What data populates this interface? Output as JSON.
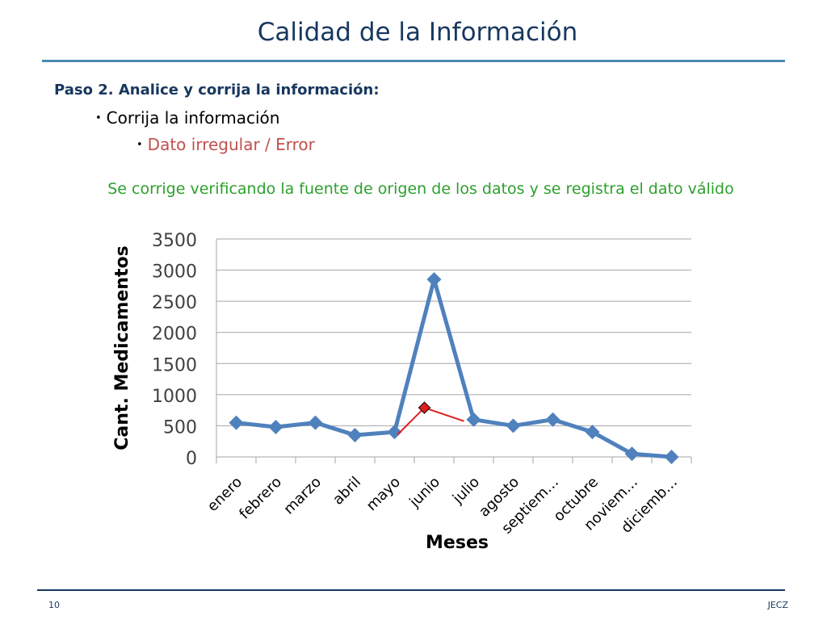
{
  "slide": {
    "title": "Calidad de la Información",
    "heading": "Paso 2. Analice y corrija la información:",
    "bullet_1": "Corrija la información",
    "bullet_2": "Dato irregular / Error",
    "note": "Se corrige verificando la fuente de origen de los datos y se registra el dato válido",
    "footer_page": "10",
    "footer_author": "JECZ"
  },
  "colors": {
    "title": "#17375e",
    "note": "#2ca02c",
    "error_text": "#c0504d",
    "series": "#4f81bd",
    "correction_line": "#e02020",
    "correction_marker": "#e02020"
  },
  "chart_data": {
    "type": "line",
    "xlabel": "Meses",
    "ylabel": "Cant. Medicamentos",
    "ylim": [
      0,
      3500
    ],
    "yticks": [
      0,
      500,
      1000,
      1500,
      2000,
      2500,
      3000,
      3500
    ],
    "grid": true,
    "categories": [
      "enero",
      "febrero",
      "marzo",
      "abril",
      "mayo",
      "junio",
      "julio",
      "agosto",
      "septiem…",
      "octubre",
      "noviem…",
      "diciemb…"
    ],
    "series": [
      {
        "values": [
          550,
          480,
          550,
          350,
          400,
          2850,
          600,
          500,
          600,
          400,
          50,
          0
        ]
      }
    ],
    "correction": {
      "category": "junio",
      "value": 790,
      "from_value": 400,
      "to_value": 600
    }
  }
}
